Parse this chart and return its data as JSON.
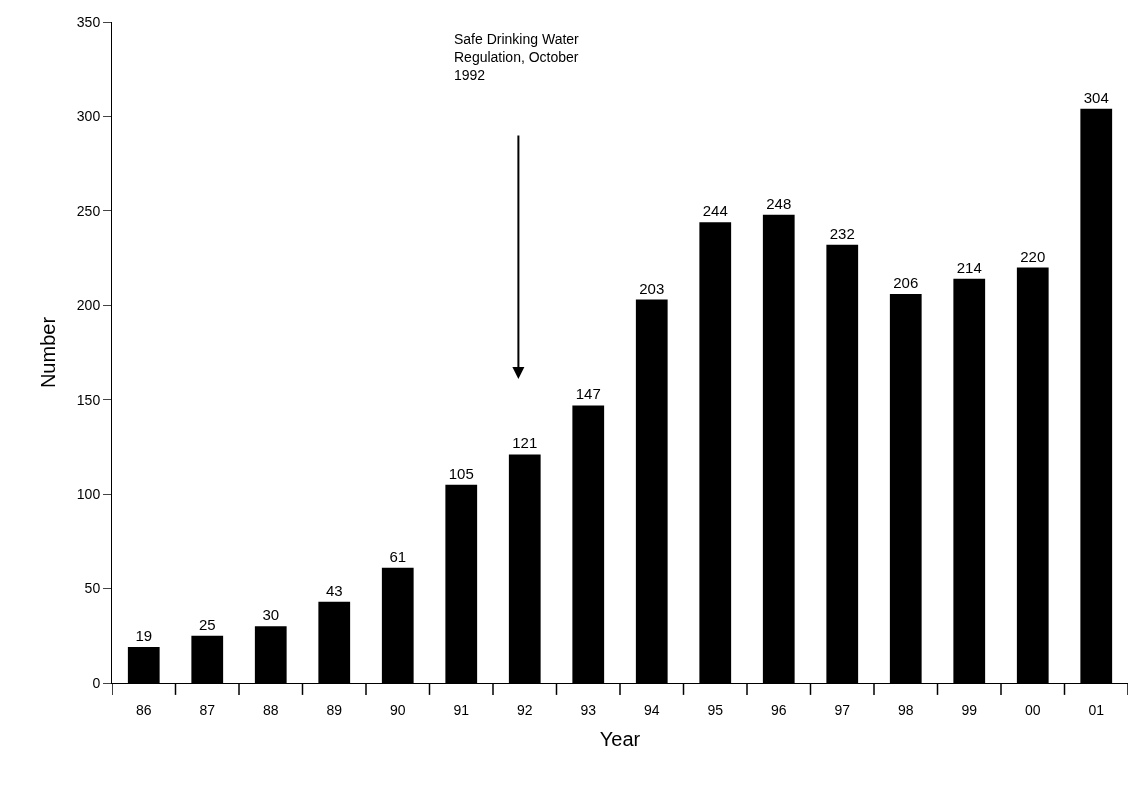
{
  "chart_data": {
    "type": "bar",
    "xlabel": "Year",
    "ylabel": "Number",
    "categories": [
      "86",
      "87",
      "88",
      "89",
      "90",
      "91",
      "92",
      "93",
      "94",
      "95",
      "96",
      "97",
      "98",
      "99",
      "00",
      "01"
    ],
    "values": [
      19,
      25,
      30,
      43,
      61,
      105,
      121,
      147,
      203,
      244,
      248,
      232,
      206,
      214,
      220,
      304
    ],
    "color": "#000000",
    "ylim": [
      0,
      350
    ],
    "yticks": [
      0,
      50,
      100,
      150,
      200,
      250,
      300,
      350
    ],
    "data_labels": true,
    "annotations": [
      "Safe Drinking Water\nRegulation, October\n1992"
    ]
  }
}
